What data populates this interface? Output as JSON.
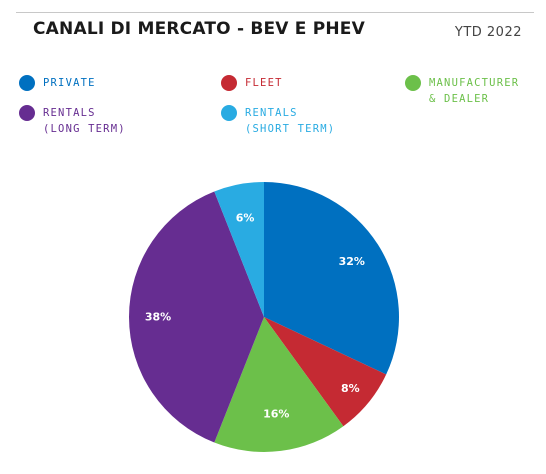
{
  "header": {
    "title": "CANALI DI MERCATO - BEV E PHEV",
    "period": "YTD 2022"
  },
  "chart_data": {
    "type": "pie",
    "title": "CANALI DI MERCATO - BEV E PHEV",
    "subtitle": "YTD 2022",
    "legend_position": "top",
    "slices": [
      {
        "legend_lines": [
          "PRIVATE"
        ],
        "value": 32,
        "label": "32%",
        "color": "#0070c0"
      },
      {
        "legend_lines": [
          "FLEET"
        ],
        "value": 8,
        "label": "8%",
        "color": "#c52a33"
      },
      {
        "legend_lines": [
          "MANUFACTURER",
          "& DEALER"
        ],
        "value": 16,
        "label": "16%",
        "color": "#6cc04a"
      },
      {
        "legend_lines": [
          "RENTALS",
          "(LONG TERM)"
        ],
        "value": 38,
        "label": "38%",
        "color": "#662d91"
      },
      {
        "legend_lines": [
          "RENTALS",
          "(SHORT TERM)"
        ],
        "value": 6,
        "label": "6%",
        "color": "#29abe2"
      }
    ]
  }
}
